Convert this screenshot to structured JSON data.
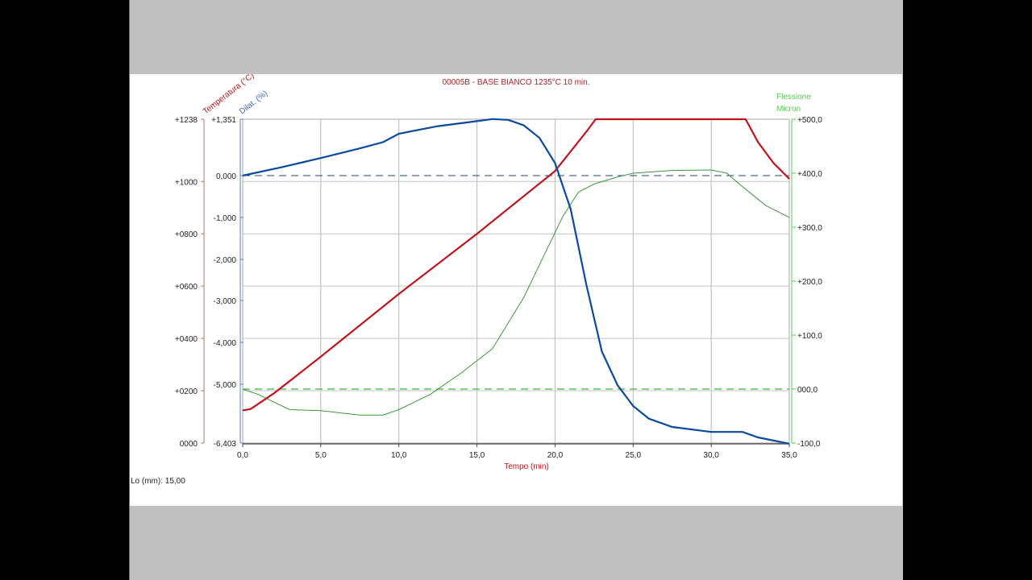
{
  "window": {
    "background": "#000000",
    "frame_color": "#c0c0c0"
  },
  "chart_title": "00005B - BASE BIANCO 1235°C 10 min.",
  "footer": {
    "lo_label": "Lo (mm): 15,00"
  },
  "colors": {
    "temperature": "#c0141e",
    "dilatation": "#0a4aa0",
    "flexion": "#2a9a2a",
    "flexion_axis": "#55d055",
    "grid": "#b4b4b4"
  },
  "axes": {
    "x": {
      "label": "Tempo (min)",
      "ticks": [
        "0,0",
        "5,0",
        "10,0",
        "15,0",
        "20,0",
        "25,0",
        "30,0",
        "35,0"
      ],
      "range": [
        0,
        35
      ]
    },
    "temperature": {
      "label": "Temperatura (°C)",
      "ticks": [
        "+1238",
        "+1000",
        "+0800",
        "+0600",
        "+0400",
        "+0200",
        "0000"
      ],
      "range": [
        0,
        1238
      ]
    },
    "dilatation": {
      "label": "Dilat. (%)",
      "ticks": [
        "+1,351",
        "0,000",
        "-1,000",
        "-2,000",
        "-3,000",
        "-4,000",
        "-5,000",
        "-6,403"
      ],
      "range": [
        -6.403,
        1.351
      ]
    },
    "flexion": {
      "label_line1": "Flessione",
      "label_line2": "Micron",
      "ticks": [
        "+500,0",
        "+400,0",
        "+300,0",
        "+200,0",
        "+100,0",
        "000,0",
        "-100,0"
      ],
      "range": [
        -100,
        500
      ]
    }
  },
  "chart_data": {
    "type": "line",
    "title": "00005B - BASE BIANCO 1235°C 10 min.",
    "xlabel": "Tempo (min)",
    "xlim": [
      0,
      35
    ],
    "grid": true,
    "legend": "axis labels (no legend box)",
    "series": [
      {
        "name": "Temperatura (°C)",
        "axis": "left-outer",
        "ylim": [
          0,
          1238
        ],
        "x": [
          0,
          0.5,
          2,
          5,
          10,
          15,
          20,
          22,
          22.6,
          25,
          30,
          32.2,
          33,
          34,
          35
        ],
        "y": [
          125,
          130,
          190,
          330,
          570,
          800,
          1040,
          1190,
          1238,
          1238,
          1238,
          1238,
          1150,
          1070,
          1010
        ]
      },
      {
        "name": "Dilat. (%)",
        "axis": "left-inner",
        "ylim": [
          -6.403,
          1.351
        ],
        "x": [
          0,
          2.5,
          5,
          7.5,
          9,
          10,
          12.5,
          15,
          16,
          17,
          18,
          19,
          20,
          21,
          22,
          23,
          24,
          25,
          26,
          27.5,
          30,
          32,
          33,
          35
        ],
        "y": [
          0.0,
          0.2,
          0.42,
          0.65,
          0.8,
          1.0,
          1.18,
          1.3,
          1.35,
          1.33,
          1.2,
          0.9,
          0.3,
          -0.8,
          -2.6,
          -4.2,
          -5.0,
          -5.5,
          -5.8,
          -6.0,
          -6.12,
          -6.12,
          -6.25,
          -6.4
        ]
      },
      {
        "name": "Flessione Micron",
        "axis": "right",
        "ylim": [
          -100,
          500
        ],
        "x": [
          0,
          1,
          3,
          5,
          7.5,
          9,
          10,
          12,
          14,
          16,
          18,
          19.5,
          20.5,
          21.5,
          22.5,
          24,
          25,
          27.5,
          30,
          31,
          32,
          33.5,
          35
        ],
        "y": [
          0,
          -10,
          -38,
          -40,
          -48,
          -48,
          -38,
          -10,
          30,
          75,
          170,
          260,
          320,
          365,
          380,
          393,
          400,
          405,
          406,
          400,
          375,
          340,
          318
        ]
      },
      {
        "name": "Dilat. zero reference (dashed)",
        "axis": "left-inner",
        "x": [
          0,
          35
        ],
        "y": [
          0,
          0
        ]
      },
      {
        "name": "Flessione zero reference (dashed)",
        "axis": "right",
        "x": [
          0,
          35
        ],
        "y": [
          0,
          0
        ]
      }
    ]
  }
}
